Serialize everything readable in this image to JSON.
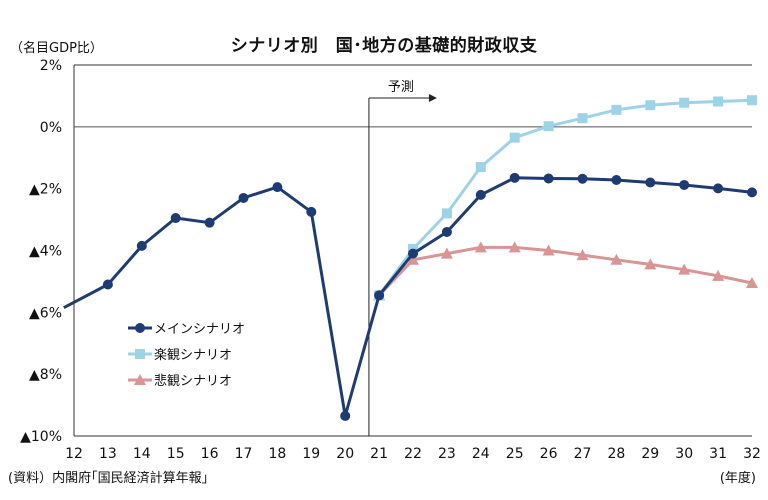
{
  "chart_data": {
    "type": "line",
    "title": "シナリオ別　国･地方の基礎的財政収支",
    "ylabel": "（名目GDP比）",
    "xunit": "(年度)",
    "source": "(資料）内閣府｢国民経済計算年報｣",
    "forecast_label": "予測",
    "forecast_start": 20.7,
    "x": [
      12,
      13,
      14,
      15,
      16,
      17,
      18,
      19,
      20,
      21,
      22,
      23,
      24,
      25,
      26,
      27,
      28,
      29,
      30,
      31,
      32
    ],
    "xlim": [
      12,
      32
    ],
    "ylim": [
      -10,
      2
    ],
    "yticks": [
      2,
      0,
      -2,
      -4,
      -6,
      -8,
      -10
    ],
    "ytick_labels": [
      "2%",
      "0%",
      "▲2%",
      "▲4%",
      "▲6%",
      "▲8%",
      "▲10%"
    ],
    "xtick_labels": [
      "12",
      "13",
      "14",
      "15",
      "16",
      "17",
      "18",
      "19",
      "20",
      "21",
      "22",
      "23",
      "24",
      "25",
      "26",
      "27",
      "28",
      "29",
      "30",
      "31",
      "32"
    ],
    "grid": false,
    "legend_position": "lower-left",
    "series": [
      {
        "name": "メインシナリオ",
        "color": "#1f3b73",
        "marker": "circle",
        "x": [
          11.7,
          13,
          14,
          15,
          16,
          17,
          18,
          19,
          20,
          21,
          22,
          23,
          24,
          25,
          26,
          27,
          28,
          29,
          30,
          31,
          32
        ],
        "values": [
          -5.85,
          -5.1,
          -3.85,
          -2.95,
          -3.1,
          -2.3,
          -1.95,
          -2.75,
          -9.35,
          -5.45,
          -4.1,
          -3.4,
          -2.2,
          -1.65,
          -1.67,
          -1.68,
          -1.72,
          -1.8,
          -1.88,
          -1.99,
          -2.12
        ]
      },
      {
        "name": "楽観シナリオ",
        "color": "#9dd3e6",
        "marker": "square",
        "x": [
          21,
          22,
          23,
          24,
          25,
          26,
          27,
          28,
          29,
          30,
          31,
          32
        ],
        "values": [
          -5.45,
          -3.95,
          -2.8,
          -1.3,
          -0.35,
          0.02,
          0.28,
          0.55,
          0.7,
          0.78,
          0.82,
          0.86
        ]
      },
      {
        "name": "悲観シナリオ",
        "color": "#d99594",
        "marker": "triangle",
        "x": [
          21,
          22,
          23,
          24,
          25,
          26,
          27,
          28,
          29,
          30,
          31,
          32
        ],
        "values": [
          -5.45,
          -4.3,
          -4.1,
          -3.9,
          -3.9,
          -4.0,
          -4.15,
          -4.3,
          -4.45,
          -4.62,
          -4.82,
          -5.05
        ]
      }
    ]
  }
}
